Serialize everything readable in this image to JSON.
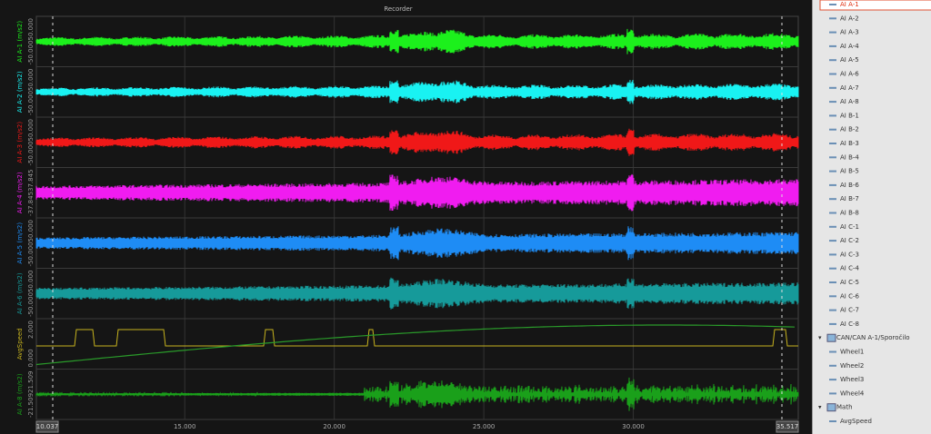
{
  "header": {
    "title": "Recorder"
  },
  "x_axis": {
    "xlim": [
      10.037,
      35.517
    ],
    "ticks": [
      {
        "value": 15,
        "label": "15.000"
      },
      {
        "value": 20,
        "label": "20.000"
      },
      {
        "value": 25,
        "label": "25.000"
      },
      {
        "value": 30,
        "label": "30.000"
      }
    ]
  },
  "strips": [
    {
      "label": "AI A-1 (m/s2)",
      "color": "#1cf01c",
      "max": "50.000",
      "min": "-50.000"
    },
    {
      "label": "AI A-2 (m/s2)",
      "color": "#19f2f2",
      "max": "50.000",
      "min": "-50.000"
    },
    {
      "label": "AI A-3 (m/s2)",
      "color": "#f01818",
      "max": "50.000",
      "min": "-50.000"
    },
    {
      "label": "AI A-4 (m/s2)",
      "color": "#f01cf0",
      "max": "37.845",
      "min": "-37.845"
    },
    {
      "label": "AI A-5 (m/s2)",
      "color": "#1e8cf5",
      "max": "50.000",
      "min": "-50.000"
    },
    {
      "label": "AI A-6 (m/s2)",
      "color": "#169a9a",
      "max": "50.000",
      "min": "-50.000"
    },
    {
      "label": "AvgSpeed",
      "color": "#c8b41e",
      "max": "2.000",
      "min": "0.000"
    },
    {
      "label": "AI A-8 (m/s2)",
      "color": "#1aa01a",
      "max": "21.509",
      "min": "-21.509"
    }
  ],
  "channel_list": {
    "analog": [
      "AI A-1",
      "AI A-2",
      "AI A-3",
      "AI A-4",
      "AI A-5",
      "AI A-6",
      "AI A-7",
      "AI A-8",
      "AI B-1",
      "AI B-2",
      "AI B-3",
      "AI B-4",
      "AI B-5",
      "AI B-6",
      "AI B-7",
      "AI B-8",
      "AI C-1",
      "AI C-2",
      "AI C-3",
      "AI C-4",
      "AI C-5",
      "AI C-6",
      "AI C-7",
      "AI C-8"
    ],
    "can_group": "CAN/CAN A-1/Sporočilo",
    "can": [
      "Wheel1",
      "Wheel2",
      "Wheel3",
      "Wheel4"
    ],
    "math_group": "Math",
    "math": [
      "AvgSpeed"
    ]
  }
}
